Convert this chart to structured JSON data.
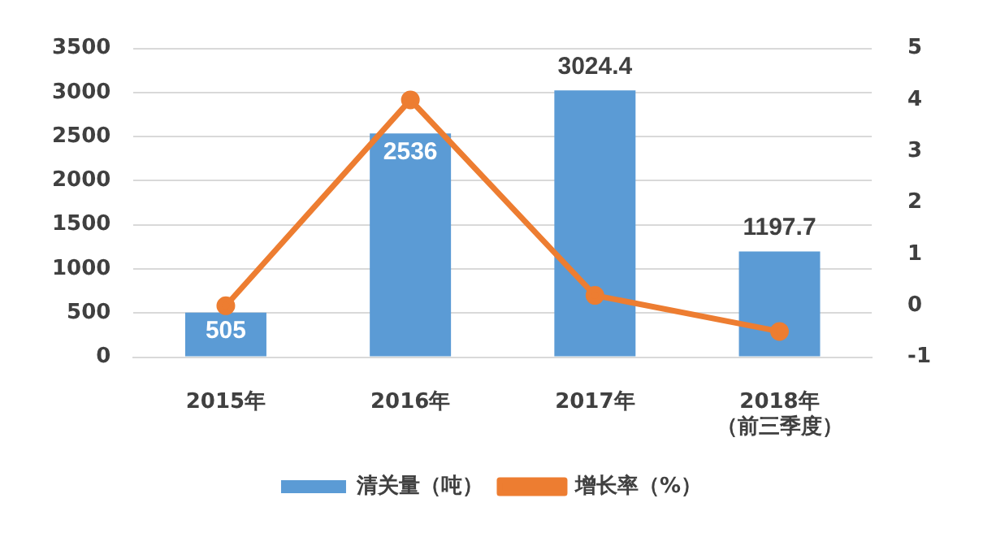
{
  "chart_data": {
    "type": "bar",
    "categories": [
      "2015年",
      "2016年",
      "2017年",
      "2018年（前三季度）"
    ],
    "series": [
      {
        "name": "清关量（吨）",
        "color": "#5b9bd5",
        "values": [
          505,
          2536,
          3024.4,
          1197.7
        ],
        "value_labels": [
          "505",
          "2536",
          "3024.4",
          "1197.7"
        ]
      },
      {
        "name": "增长率（%）",
        "type": "line",
        "axis": "y2",
        "color": "#ed7d31",
        "values": [
          0.0,
          4.0,
          0.2,
          -0.5
        ]
      }
    ],
    "ylim": [
      0,
      3500
    ],
    "yticks": [
      0,
      500,
      1000,
      1500,
      2000,
      2500,
      3000,
      3500
    ],
    "y2lim": [
      -1,
      5
    ],
    "y2ticks": [
      -1,
      0,
      1,
      2,
      3,
      4,
      5
    ],
    "grid": "y",
    "legend": "bottom",
    "marker": "circle",
    "line_style": "solid"
  }
}
